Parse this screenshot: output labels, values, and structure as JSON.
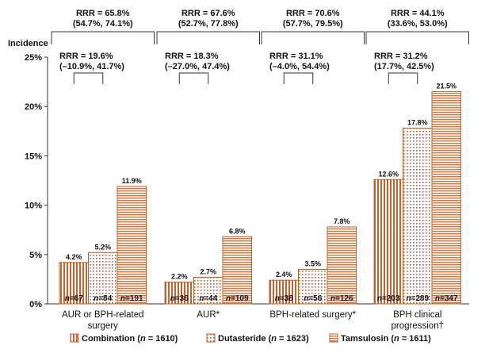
{
  "chart_data": {
    "type": "bar",
    "ylabel": "Incidence",
    "ylim": [
      0,
      25
    ],
    "yticks": [
      "0%",
      "5%",
      "10%",
      "15%",
      "20%",
      "25%"
    ],
    "categories": [
      [
        "AUR or BPH-related",
        "surgery"
      ],
      [
        "AUR*"
      ],
      [
        "BPH-related surgery*"
      ],
      [
        "BPH clinical",
        "progression†"
      ]
    ],
    "series": [
      {
        "name": "Combination",
        "legend_n": "1610",
        "pattern": "vertical",
        "values": [
          4.2,
          2.2,
          2.4,
          12.6
        ],
        "value_labels": [
          "4.2%",
          "2.2%",
          "2.4%",
          "12.6%"
        ],
        "n_labels": [
          "67",
          "36",
          "38",
          "203"
        ]
      },
      {
        "name": "Dutasteride",
        "legend_n": "1623",
        "pattern": "dots",
        "values": [
          5.2,
          2.7,
          3.5,
          17.8
        ],
        "value_labels": [
          "5.2%",
          "2.7%",
          "3.5%",
          "17.8%"
        ],
        "n_labels": [
          "84",
          "44",
          "56",
          "289"
        ]
      },
      {
        "name": "Tamsulosin",
        "legend_n": "1611",
        "pattern": "horizontal",
        "values": [
          11.9,
          6.8,
          7.8,
          21.5
        ],
        "value_labels": [
          "11.9%",
          "6.8%",
          "7.8%",
          "21.5%"
        ],
        "n_labels": [
          "191",
          "109",
          "126",
          "347"
        ]
      }
    ],
    "annotations": {
      "outer_rrr": [
        [
          "RRR = 65.8%",
          "(54.7%, 74.1%)"
        ],
        [
          "RRR = 67.6%",
          "(52.7%, 77.8%)"
        ],
        [
          "RRR = 70.6%",
          "(57.7%, 79.5%)"
        ],
        [
          "RRR = 44.1%",
          "(33.6%, 53.0%)"
        ]
      ],
      "inner_rrr": [
        [
          "RRR = 19.6%",
          "(–10.9%, 41.7%)"
        ],
        [
          "RRR = 18.3%",
          "(–27.0%, 47.4%)"
        ],
        [
          "RRR = 31.1%",
          "(–4.0%, 54.4%)"
        ],
        [
          "RRR = 31.2%",
          "(17.7%, 42.5%)"
        ]
      ]
    }
  },
  "colors": {
    "stroke": "#c0602a",
    "pattern_line": "#d9753c",
    "axis": "#333333",
    "text": "#111111"
  }
}
